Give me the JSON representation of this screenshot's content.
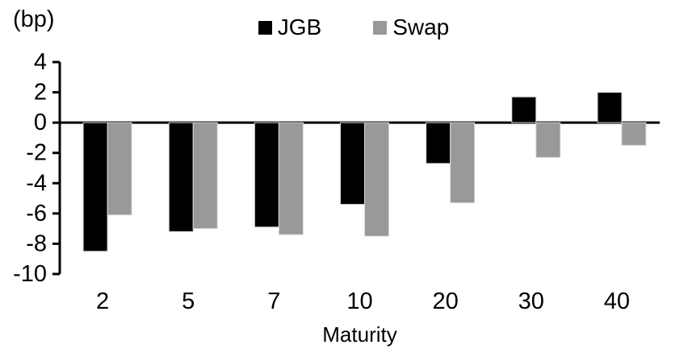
{
  "chart": {
    "unit_label": "(bp)"
  },
  "chart_data": {
    "type": "bar",
    "title": "",
    "categories": [
      "2",
      "5",
      "7",
      "10",
      "20",
      "30",
      "40"
    ],
    "series": [
      {
        "name": "JGB",
        "color": "#000000",
        "values": [
          -8.5,
          -7.2,
          -6.9,
          -5.4,
          -2.7,
          1.7,
          2.0
        ]
      },
      {
        "name": "Swap",
        "color": "#999999",
        "values": [
          -6.1,
          -7.0,
          -7.4,
          -7.5,
          -5.3,
          -2.3,
          -1.5
        ]
      }
    ],
    "xlabel": "Maturity",
    "ylabel": "(bp)",
    "ylim": [
      -10,
      4
    ],
    "yticks": [
      4,
      2,
      0,
      -2,
      -4,
      -6,
      -8,
      -10
    ],
    "grid": false,
    "legend_position": "top-center",
    "baseline": 0
  }
}
